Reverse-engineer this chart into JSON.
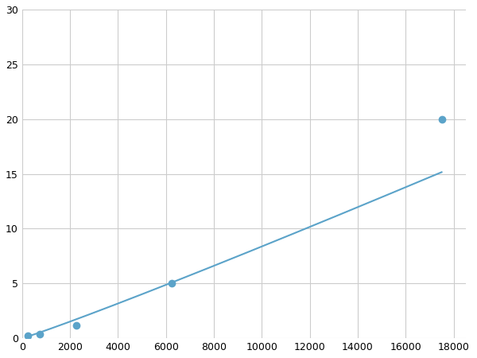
{
  "x": [
    250,
    750,
    2250,
    6250,
    17500
  ],
  "y": [
    0.25,
    0.4,
    1.2,
    5.0,
    20.0
  ],
  "line_color": "#5ba3c9",
  "marker_color": "#5ba3c9",
  "marker_size": 7,
  "xlim": [
    0,
    18500
  ],
  "ylim": [
    0,
    30
  ],
  "xticks": [
    0,
    2000,
    4000,
    6000,
    8000,
    10000,
    12000,
    14000,
    16000,
    18000
  ],
  "yticks": [
    0,
    5,
    10,
    15,
    20,
    25,
    30
  ],
  "grid_color": "#cccccc",
  "background_color": "#ffffff",
  "linewidth": 1.5,
  "figsize": [
    6.0,
    4.5
  ],
  "dpi": 100
}
